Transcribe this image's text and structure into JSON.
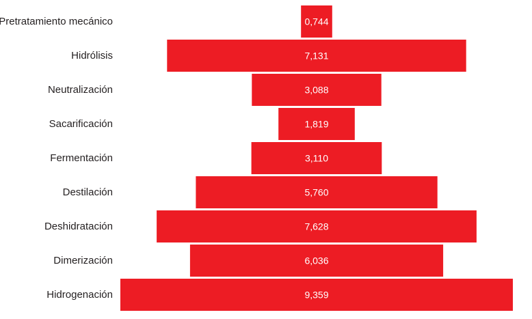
{
  "chart_data": {
    "type": "bar",
    "orientation": "horizontal-centered",
    "categories": [
      "Pretratamiento mecánico",
      "Hidrólisis",
      "Neutralización",
      "Sacarificación",
      "Fermentación",
      "Destilación",
      "Deshidratación",
      "Dimerización",
      "Hidrogenación"
    ],
    "values": [
      0.744,
      7.131,
      3.088,
      1.819,
      3.11,
      5.76,
      7.628,
      6.036,
      9.359
    ],
    "value_labels": [
      "0,744",
      "7,131",
      "3,088",
      "1,819",
      "3,110",
      "5,760",
      "7,628",
      "6,036",
      "9,359"
    ],
    "bar_color": "#ed1c24",
    "title": "",
    "xlabel": "",
    "ylabel": "",
    "grid": false,
    "legend": "none"
  }
}
